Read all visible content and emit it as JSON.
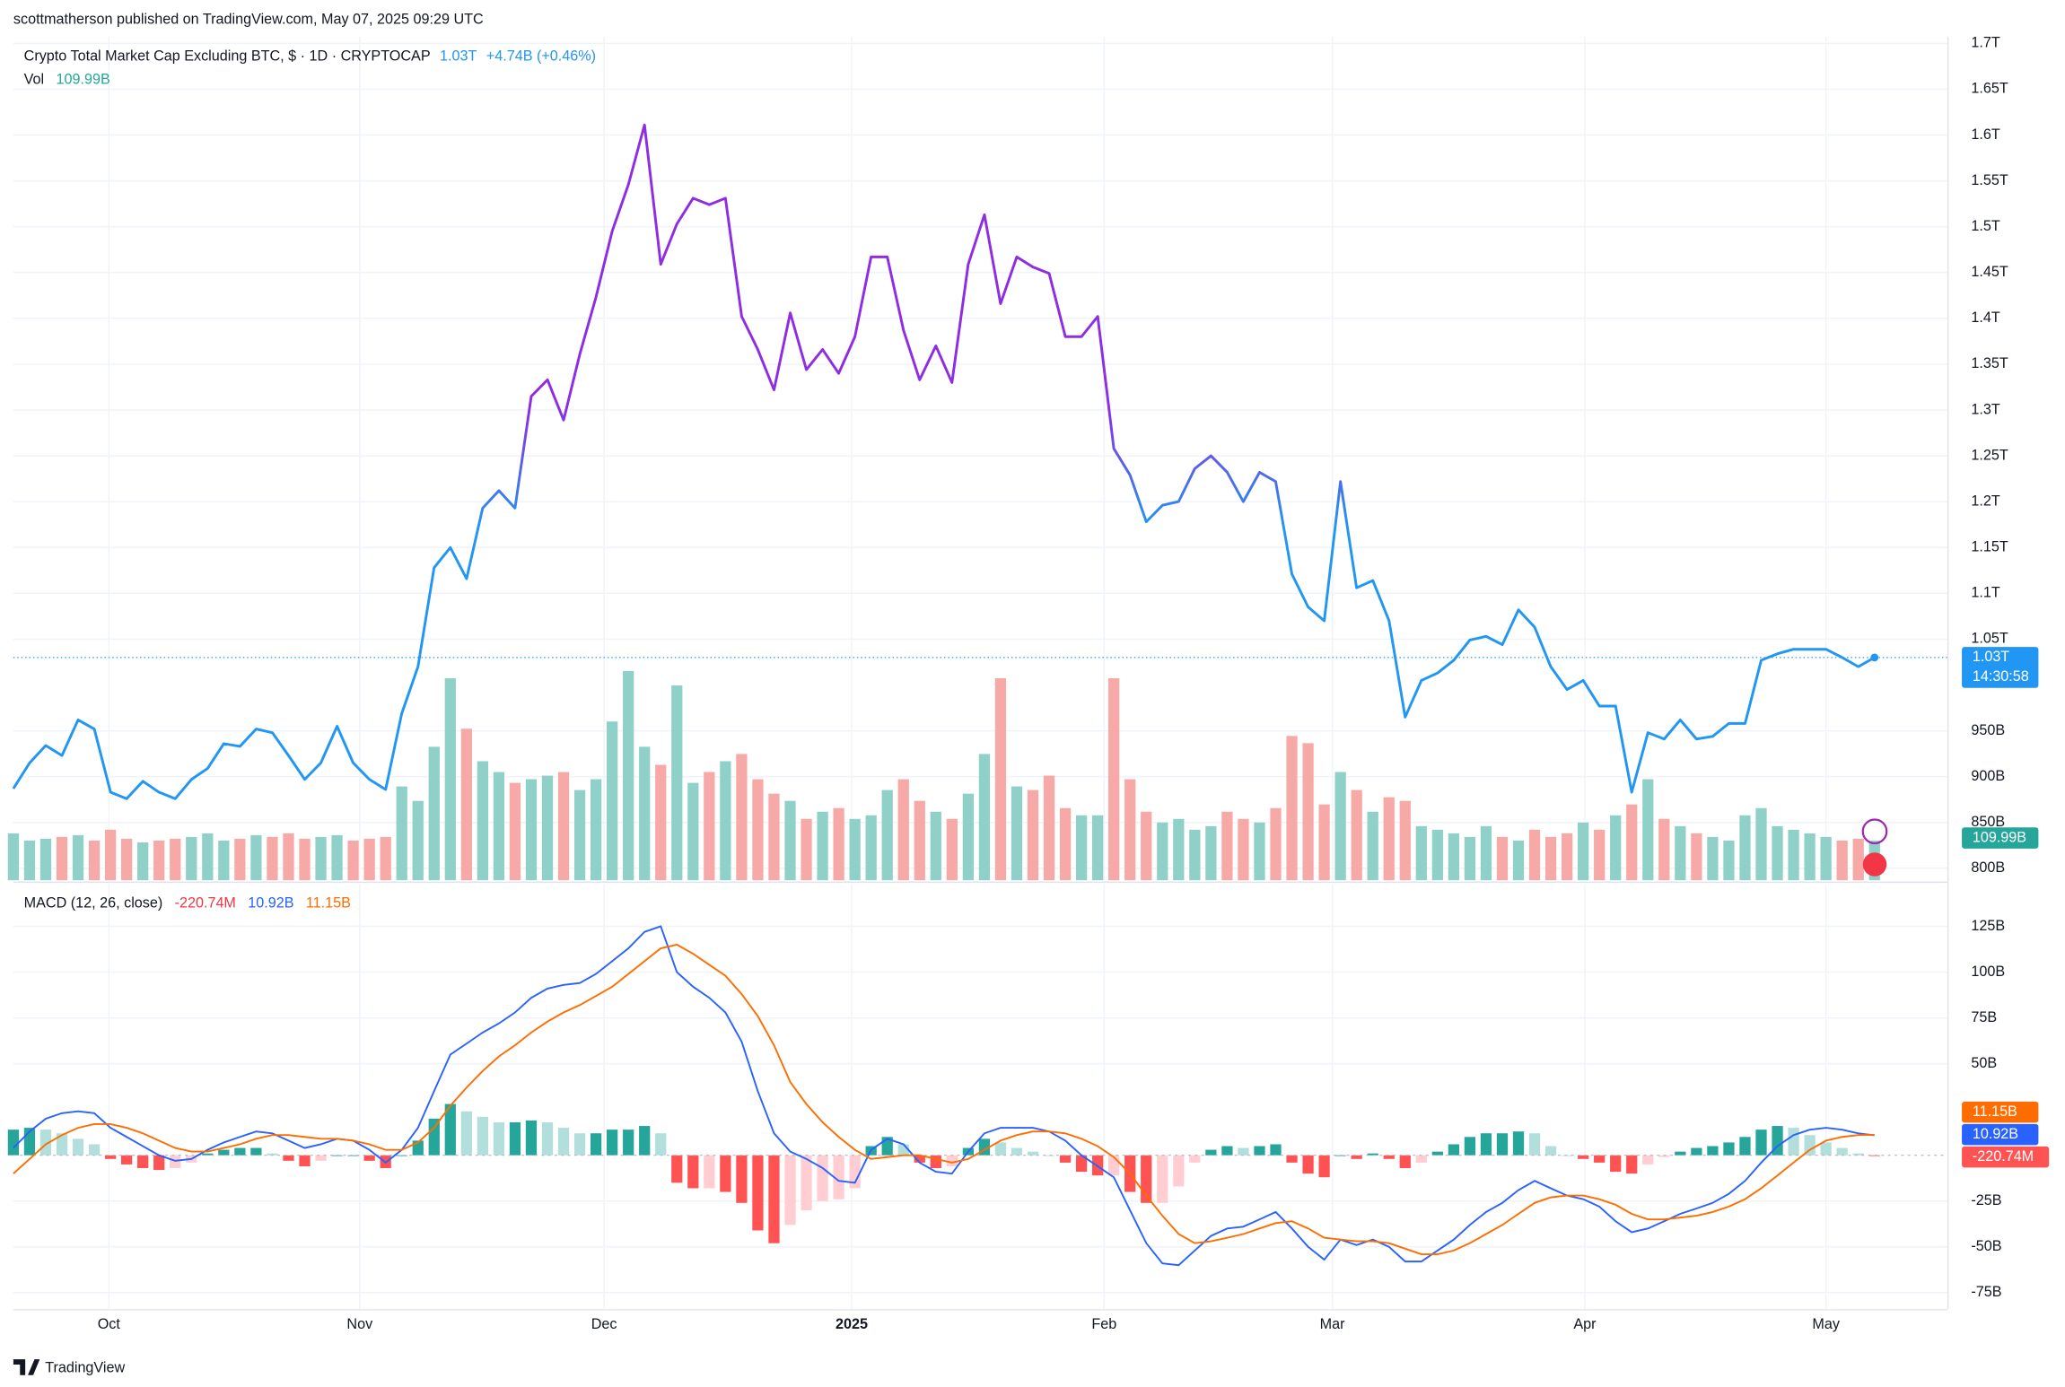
{
  "chart_data": {
    "type": "line",
    "publisher": "scottmatherson published on TradingView.com, May 07, 2025 09:29 UTC",
    "title": "Crypto Total Market Cap Excluding BTC, $ · 1D · CRYPTOCAP",
    "last_label": "1.03T",
    "change": "+4.74B (+0.46%)",
    "countdown": "14:30:58",
    "brand": "TradingView",
    "colors": [
      "#2196f3",
      "#8e2de2"
    ],
    "grid": true,
    "xlim": [
      0,
      119.5
    ],
    "xticks": [
      {
        "value": 5.9,
        "label": "Oct"
      },
      {
        "value": 21.4,
        "label": "Nov"
      },
      {
        "value": 36.5,
        "label": "Dec"
      },
      {
        "value": 51.8,
        "label": "2025"
      },
      {
        "value": 67.4,
        "label": "Feb"
      },
      {
        "value": 81.5,
        "label": "Mar"
      },
      {
        "value": 97.1,
        "label": "Apr"
      },
      {
        "value": 112.0,
        "label": "May"
      }
    ],
    "ylim": [
      787,
      1707
    ],
    "yticks": [
      {
        "value": 1700,
        "label": "1.7T"
      },
      {
        "value": 1650,
        "label": "1.65T"
      },
      {
        "value": 1600,
        "label": "1.6T"
      },
      {
        "value": 1550,
        "label": "1.55T"
      },
      {
        "value": 1500,
        "label": "1.5T"
      },
      {
        "value": 1450,
        "label": "1.45T"
      },
      {
        "value": 1400,
        "label": "1.4T"
      },
      {
        "value": 1350,
        "label": "1.35T"
      },
      {
        "value": 1300,
        "label": "1.3T"
      },
      {
        "value": 1250,
        "label": "1.25T"
      },
      {
        "value": 1200,
        "label": "1.2T"
      },
      {
        "value": 1150,
        "label": "1.15T"
      },
      {
        "value": 1100,
        "label": "1.1T"
      },
      {
        "value": 1050,
        "label": "1.05T"
      },
      {
        "value": 950,
        "label": "950B"
      },
      {
        "value": 900,
        "label": "900B"
      },
      {
        "value": 850,
        "label": "850B"
      },
      {
        "value": 800,
        "label": "800B"
      }
    ],
    "values": [
      887,
      915,
      934,
      923,
      962,
      952,
      883,
      876,
      895,
      883,
      876,
      897,
      909,
      936,
      933,
      952,
      948,
      923,
      897,
      915,
      955,
      915,
      897,
      886,
      969,
      1020,
      1128,
      1150,
      1116,
      1193,
      1212,
      1193,
      1315,
      1333,
      1289,
      1361,
      1423,
      1495,
      1546,
      1611,
      1459,
      1503,
      1531,
      1524,
      1531,
      1402,
      1366,
      1322,
      1406,
      1344,
      1366,
      1340,
      1380,
      1467,
      1467,
      1387,
      1333,
      1370,
      1330,
      1459,
      1513,
      1416,
      1467,
      1456,
      1449,
      1380,
      1380,
      1402,
      1258,
      1229,
      1178,
      1196,
      1200,
      1236,
      1250,
      1232,
      1200,
      1232,
      1222,
      1121,
      1085,
      1070,
      1222,
      1106,
      1114,
      1070,
      965,
      1005,
      1013,
      1027,
      1049,
      1053,
      1044,
      1082,
      1063,
      1020,
      995,
      1005,
      977,
      977,
      883,
      948,
      941,
      962,
      941,
      944,
      958,
      958,
      1027,
      1034,
      1039,
      1039,
      1039,
      1030,
      1020,
      1030
    ],
    "volume": {
      "name": "Vol",
      "value_label": "109.99B",
      "lim": [
        0,
        600
      ],
      "colors": {
        "up": "#8fd1c8",
        "down": "#f7a9a7"
      },
      "values": [
        130,
        110,
        115,
        120,
        125,
        110,
        140,
        115,
        105,
        110,
        115,
        120,
        130,
        110,
        115,
        125,
        120,
        130,
        115,
        120,
        125,
        110,
        115,
        120,
        260,
        220,
        370,
        560,
        420,
        330,
        300,
        270,
        280,
        290,
        300,
        250,
        280,
        440,
        580,
        370,
        320,
        540,
        270,
        300,
        330,
        350,
        280,
        240,
        220,
        170,
        190,
        200,
        170,
        180,
        250,
        280,
        220,
        190,
        170,
        240,
        350,
        560,
        260,
        250,
        290,
        200,
        180,
        180,
        560,
        280,
        190,
        160,
        170,
        140,
        150,
        190,
        170,
        160,
        200,
        400,
        380,
        210,
        300,
        250,
        190,
        230,
        220,
        150,
        140,
        130,
        120,
        150,
        120,
        110,
        140,
        120,
        130,
        160,
        140,
        180,
        210,
        280,
        170,
        150,
        130,
        120,
        110,
        180,
        200,
        150,
        140,
        130,
        120,
        110,
        115,
        109.99
      ]
    },
    "macd": {
      "name": "MACD (12, 26, close)",
      "ylim": [
        -84,
        148
      ],
      "yticks": [
        {
          "value": 125,
          "label": "125B"
        },
        {
          "value": 100,
          "label": "100B"
        },
        {
          "value": 75,
          "label": "75B"
        },
        {
          "value": 50,
          "label": "50B"
        },
        {
          "value": -25,
          "label": "-25B"
        },
        {
          "value": -50,
          "label": "-50B"
        },
        {
          "value": -75,
          "label": "-75B"
        }
      ],
      "histogram": {
        "value_label": "-220.74M",
        "colors": [
          "#26a69a",
          "#b2dfdb",
          "#ff5252",
          "#ffcdd2"
        ],
        "values": [
          14,
          15,
          14,
          12,
          9,
          6,
          -2,
          -5,
          -7,
          -8,
          -7,
          -4,
          1,
          3,
          4,
          4,
          1,
          -3,
          -6,
          -3,
          0,
          0,
          -3,
          -7,
          0,
          8,
          20,
          28,
          24,
          21,
          18,
          18,
          19,
          18,
          15,
          12,
          12,
          14,
          14,
          16,
          12,
          -15,
          -18,
          -18,
          -20,
          -26,
          -41,
          -48,
          -38,
          -30,
          -25,
          -24,
          -18,
          5,
          10,
          6,
          -4,
          -7,
          -6,
          4,
          9,
          7,
          4,
          2,
          0,
          -4,
          -9,
          -11,
          -11,
          -20,
          -26,
          -26,
          -17,
          -4,
          3,
          5,
          4,
          5,
          6,
          -4,
          -10,
          -12,
          0,
          -2,
          1,
          -2,
          -7,
          -4,
          2,
          6,
          10,
          12,
          12,
          13,
          12,
          5,
          0,
          -2,
          -4,
          -9,
          -10,
          -5,
          -1,
          2,
          4,
          5,
          7,
          10,
          14,
          16,
          15,
          11,
          7,
          4,
          1,
          -0.22074
        ]
      },
      "macd_line": {
        "value_label": "10.92B",
        "color": "#2962ff",
        "values": [
          4,
          13,
          20,
          23,
          24,
          23,
          15,
          10,
          5,
          0,
          -3,
          -2,
          3,
          7,
          10,
          13,
          12,
          8,
          4,
          6,
          9,
          8,
          3,
          -4,
          3,
          15,
          35,
          55,
          61,
          67,
          72,
          78,
          86,
          91,
          93,
          94,
          99,
          106,
          113,
          122,
          125,
          100,
          92,
          86,
          78,
          62,
          35,
          12,
          2,
          -2,
          -7,
          -14,
          -15,
          3,
          9,
          6,
          -4,
          -9,
          -10,
          2,
          12,
          15,
          15,
          15,
          13,
          8,
          0,
          -6,
          -12,
          -30,
          -48,
          -59,
          -60,
          -52,
          -44,
          -40,
          -39,
          -35,
          -31,
          -40,
          -50,
          -57,
          -46,
          -49,
          -46,
          -50,
          -58,
          -58,
          -52,
          -46,
          -38,
          -31,
          -26,
          -19,
          -14,
          -18,
          -22,
          -24,
          -28,
          -36,
          -42,
          -40,
          -36,
          -32,
          -29,
          -26,
          -21,
          -14,
          -4,
          5,
          11,
          14,
          15,
          14,
          12,
          10.92
        ]
      },
      "signal_line": {
        "value_label": "11.15B",
        "color": "#ff6d00",
        "values": [
          -10,
          -2,
          6,
          11,
          15,
          17,
          17,
          15,
          12,
          8,
          4,
          2,
          2,
          4,
          6,
          9,
          11,
          11,
          10,
          9,
          9,
          8,
          6,
          3,
          3,
          7,
          15,
          27,
          37,
          46,
          54,
          60,
          67,
          73,
          78,
          82,
          87,
          92,
          99,
          106,
          113,
          115,
          110,
          104,
          98,
          88,
          76,
          60,
          40,
          28,
          18,
          10,
          3,
          -2,
          -1,
          0,
          0,
          -2,
          -4,
          -2,
          3,
          8,
          11,
          13,
          13,
          12,
          9,
          5,
          -1,
          -10,
          -22,
          -33,
          -43,
          -48,
          -47,
          -45,
          -43,
          -40,
          -37,
          -36,
          -40,
          -45,
          -46,
          -47,
          -47,
          -48,
          -51,
          -54,
          -54,
          -52,
          -48,
          -43,
          -38,
          -32,
          -26,
          -23,
          -22,
          -22,
          -24,
          -27,
          -32,
          -35,
          -35,
          -34,
          -33,
          -31,
          -28,
          -24,
          -18,
          -11,
          -4,
          3,
          8,
          10,
          11,
          11.15
        ]
      }
    }
  }
}
